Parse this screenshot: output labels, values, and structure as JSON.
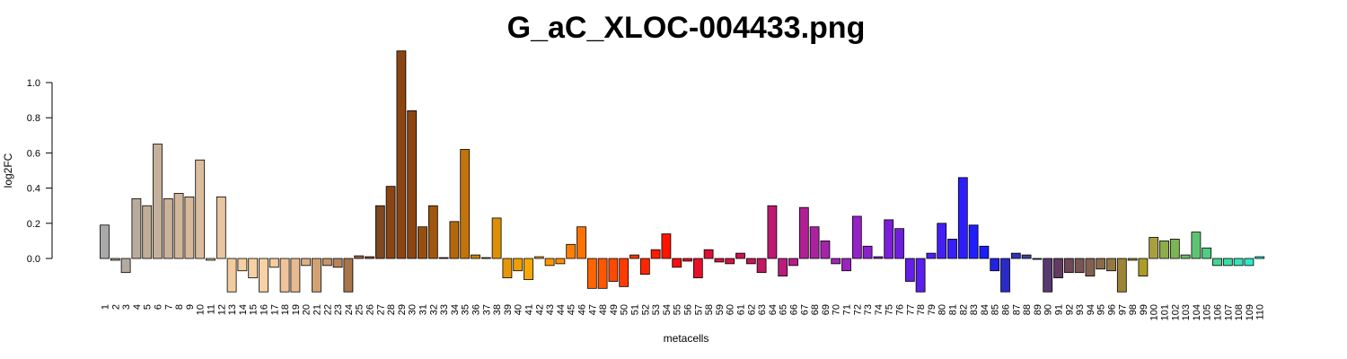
{
  "chart_data": {
    "type": "bar",
    "title": "G_aC_XLOC-004433.png",
    "xlabel": "metacells",
    "ylabel": "log2FC",
    "ylim": [
      -0.2,
      1.2
    ],
    "yticks": [
      "0.0",
      "0.2",
      "0.4",
      "0.6",
      "0.8",
      "1.0"
    ],
    "grid": false,
    "categories": [
      "1",
      "2",
      "3",
      "4",
      "5",
      "6",
      "7",
      "8",
      "9",
      "10",
      "11",
      "12",
      "13",
      "14",
      "15",
      "16",
      "17",
      "18",
      "19",
      "20",
      "21",
      "22",
      "23",
      "24",
      "25",
      "26",
      "27",
      "28",
      "29",
      "30",
      "31",
      "32",
      "33",
      "34",
      "35",
      "36",
      "37",
      "38",
      "39",
      "40",
      "41",
      "42",
      "43",
      "44",
      "45",
      "46",
      "47",
      "48",
      "49",
      "50",
      "51",
      "52",
      "53",
      "54",
      "55",
      "56",
      "57",
      "58",
      "59",
      "60",
      "61",
      "62",
      "63",
      "64",
      "65",
      "66",
      "67",
      "68",
      "69",
      "70",
      "71",
      "72",
      "73",
      "74",
      "75",
      "76",
      "77",
      "78",
      "79",
      "80",
      "81",
      "82",
      "83",
      "84",
      "85",
      "86",
      "87",
      "88",
      "89",
      "90",
      "91",
      "92",
      "93",
      "94",
      "95",
      "96",
      "97",
      "98",
      "99",
      "100",
      "101",
      "102",
      "103",
      "104",
      "105",
      "106",
      "107",
      "108",
      "109",
      "110"
    ],
    "values": [
      0.19,
      -0.01,
      -0.08,
      0.34,
      0.3,
      0.65,
      0.34,
      0.37,
      0.35,
      0.56,
      -0.01,
      0.35,
      -0.19,
      -0.07,
      -0.11,
      -0.19,
      -0.05,
      -0.19,
      -0.19,
      -0.04,
      -0.19,
      -0.04,
      -0.05,
      -0.19,
      0.015,
      0.01,
      0.3,
      0.41,
      1.18,
      0.84,
      0.18,
      0.3,
      0.005,
      0.21,
      0.62,
      0.02,
      0.005,
      0.23,
      -0.11,
      -0.07,
      -0.12,
      0.01,
      -0.04,
      -0.03,
      0.08,
      0.18,
      -0.17,
      -0.17,
      -0.13,
      -0.16,
      0.02,
      -0.09,
      0.05,
      0.14,
      -0.05,
      -0.015,
      -0.11,
      0.05,
      -0.02,
      -0.03,
      0.03,
      -0.03,
      -0.08,
      0.3,
      -0.1,
      -0.04,
      0.29,
      0.18,
      0.1,
      -0.03,
      -0.07,
      0.24,
      0.07,
      0.01,
      0.22,
      0.17,
      -0.13,
      -0.19,
      0.03,
      0.2,
      0.11,
      0.46,
      0.19,
      0.07,
      -0.07,
      -0.19,
      0.03,
      0.02,
      -0.005,
      -0.19,
      -0.11,
      -0.08,
      -0.08,
      -0.1,
      -0.06,
      -0.07,
      -0.19,
      -0.01,
      -0.1,
      0.12,
      0.1,
      0.11,
      0.02,
      0.15,
      0.06,
      -0.04,
      -0.04,
      -0.04,
      -0.04,
      0.01
    ],
    "colors": [
      "#a9a9a9",
      "#b0aaa3",
      "#b3aaa0",
      "#b9ab9b",
      "#c0ad96",
      "#c5b09b",
      "#cab19a",
      "#d0b69b",
      "#d5b999",
      "#dabd9c",
      "#e1c1a0",
      "#e8c6a0",
      "#f2cb9e",
      "#f6cfa2",
      "#f7d1a5",
      "#f8d2a6",
      "#f5cba0",
      "#f0c39a",
      "#e8ba90",
      "#dfb085",
      "#d2a274",
      "#c79566",
      "#b98459",
      "#a8744a",
      "#9a6540",
      "#8a5530",
      "#7d4822",
      "#8b4513",
      "#8b4513",
      "#8b4513",
      "#974f10",
      "#a0560e",
      "#aa5f0c",
      "#b5670b",
      "#c2730b",
      "#cc7c0a",
      "#d4850a",
      "#dc8e09",
      "#e59707",
      "#ed9f06",
      "#f5a705",
      "#fca104",
      "#ff9800",
      "#ff8d00",
      "#ff8000",
      "#ff7200",
      "#ff6400",
      "#ff5600",
      "#ff4800",
      "#ff3c00",
      "#ff3200",
      "#ff2700",
      "#ff1d00",
      "#ff1400",
      "#f70e0e",
      "#ee0e1a",
      "#e5102a",
      "#dc1034",
      "#d5123e",
      "#cf1446",
      "#c9144e",
      "#c41658",
      "#c01862",
      "#bc1a70",
      "#b91c7c",
      "#b51e88",
      "#b02094",
      "#ab22a0",
      "#a524ac",
      "#9f26b6",
      "#9a24be",
      "#9422c6",
      "#8c20cc",
      "#8420d2",
      "#7a1ed8",
      "#701ede",
      "#661ee4",
      "#5c1eea",
      "#501ef0",
      "#441ef4",
      "#381ef8",
      "#2c1efc",
      "#201efc",
      "#1a1ef4",
      "#2222e0",
      "#2a2ac8",
      "#3434b0",
      "#40409a",
      "#4a4a84",
      "#583a70",
      "#623a62",
      "#704858",
      "#7a5652",
      "#84604e",
      "#8c6c48",
      "#947840",
      "#9c8438",
      "#a49030",
      "#ac9c28",
      "#a8a040",
      "#8eac4a",
      "#7cb456",
      "#6abc62",
      "#5cc470",
      "#50cc80",
      "#46d492",
      "#3cdca4",
      "#34e4b6",
      "#2aeac8",
      "#22f0da"
    ],
    "x_axis_tick_labels_rotated": true
  }
}
